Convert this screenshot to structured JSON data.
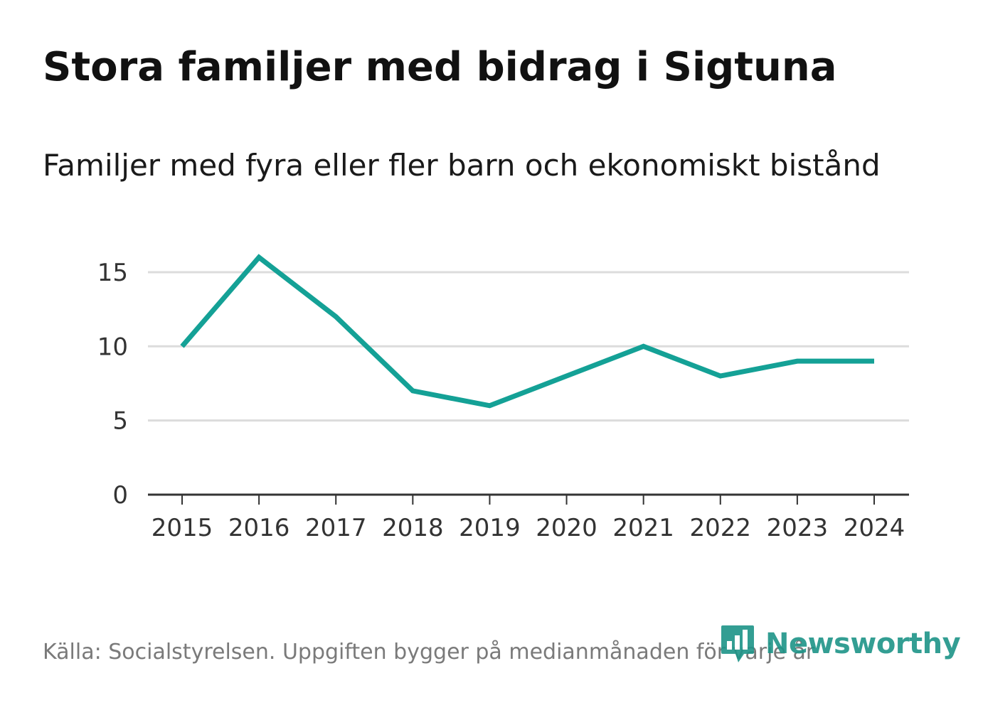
{
  "title": "Stora familjer med bidrag i Sigtuna",
  "subtitle": "Familjer med fyra eller fler barn och ekonomiskt bistånd",
  "source": "Källa: Socialstyrelsen. Uppgiften bygger på medianmånaden för varje år",
  "logo": {
    "text": "Newsworthy",
    "icon": "bar-chart-icon"
  },
  "colors": {
    "line": "#14a196",
    "grid": "#dcdcdc",
    "axis": "#333333",
    "brand": "#1e9488"
  },
  "chart_data": {
    "type": "line",
    "title": "Stora familjer med bidrag i Sigtuna",
    "subtitle": "Familjer med fyra eller fler barn och ekonomiskt bistånd",
    "xlabel": "",
    "ylabel": "",
    "ylim": [
      0,
      16
    ],
    "yticks": [
      0,
      5,
      10,
      15
    ],
    "grid": true,
    "categories": [
      "2015",
      "2016",
      "2017",
      "2018",
      "2019",
      "2020",
      "2021",
      "2022",
      "2023",
      "2024"
    ],
    "series": [
      {
        "name": "Familjer",
        "values": [
          10,
          16,
          12,
          7,
          6,
          8,
          10,
          8,
          9,
          9
        ]
      }
    ]
  }
}
